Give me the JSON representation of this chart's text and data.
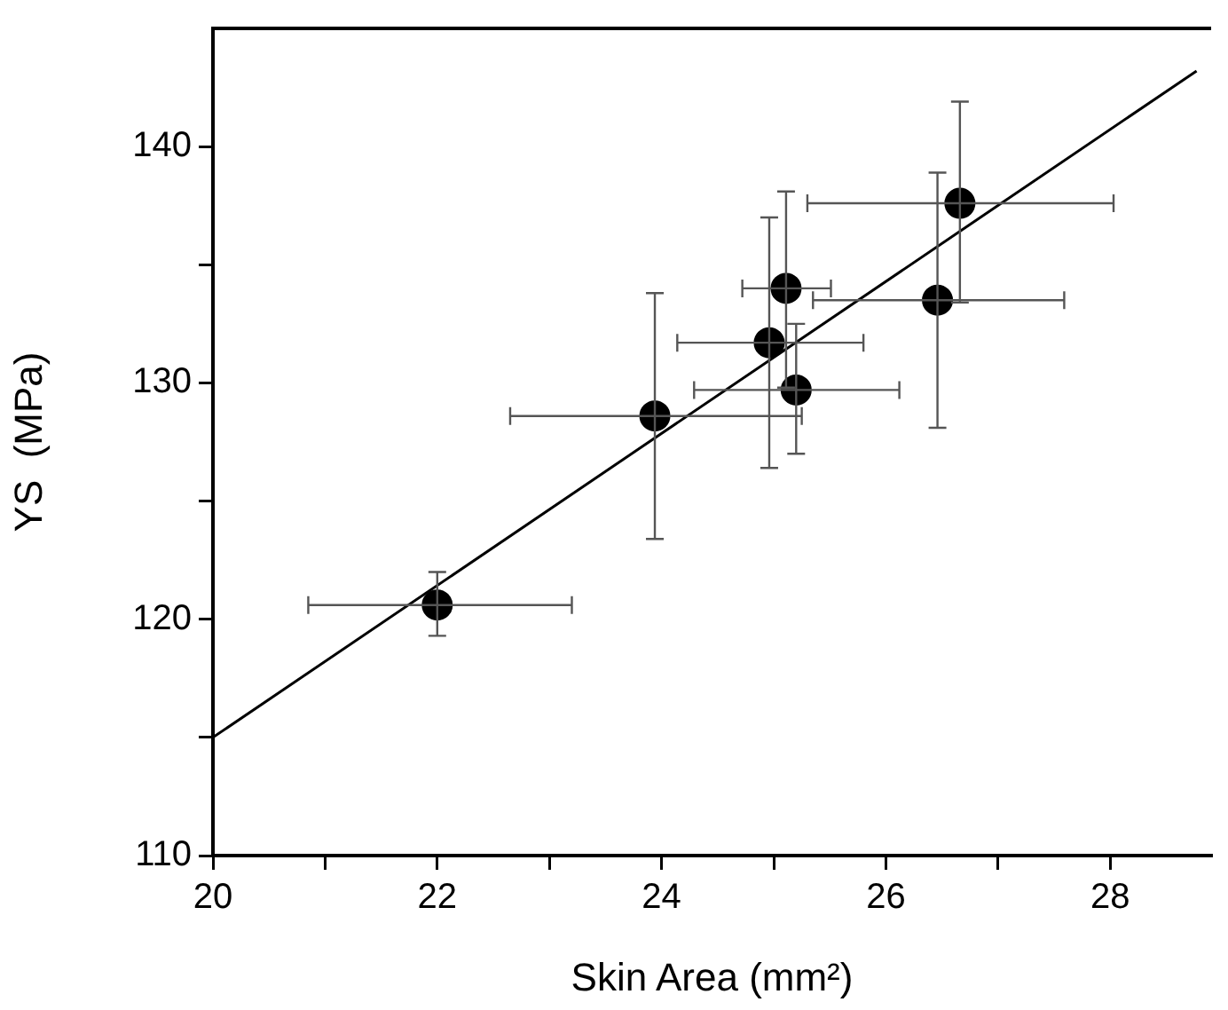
{
  "chart_data": {
    "type": "scatter",
    "xlabel": "Skin Area (mm²)",
    "ylabel": "YS  (MPa)",
    "xlim": [
      20,
      28.9
    ],
    "ylim": [
      110,
      145
    ],
    "xticks": [
      20,
      {
        "value": 21,
        "label": null
      },
      22,
      {
        "value": 23,
        "label": null
      },
      24,
      {
        "value": 25,
        "label": null
      },
      26,
      {
        "value": 27,
        "label": null
      },
      28
    ],
    "yticks": [
      110,
      {
        "value": 115,
        "label": null
      },
      120,
      {
        "value": 125,
        "label": null
      },
      130,
      {
        "value": 135,
        "label": null
      },
      140
    ],
    "grid": false,
    "legend": false,
    "marker": "circle",
    "series": [
      {
        "color": "#000000",
        "x": [
          22.0,
          23.94,
          24.96,
          25.11,
          25.2,
          26.46,
          26.66
        ],
        "values": [
          120.6,
          128.6,
          131.7,
          134.0,
          129.7,
          133.5,
          137.6
        ],
        "errors": [
          [
            119.3,
            122.0
          ],
          [
            123.4,
            133.8
          ],
          [
            126.4,
            137.0
          ],
          [
            129.8,
            138.1
          ],
          [
            127.0,
            132.5
          ],
          [
            128.1,
            138.9
          ],
          [
            133.4,
            141.9
          ]
        ],
        "xerrors": [
          [
            20.85,
            23.2
          ],
          [
            22.65,
            25.25
          ],
          [
            24.14,
            25.8
          ],
          [
            24.72,
            25.51
          ],
          [
            24.29,
            26.12
          ],
          [
            25.35,
            27.59
          ],
          [
            25.3,
            28.03
          ]
        ]
      },
      {
        "type": "line",
        "color": "#000000",
        "x": [
          20,
          28.77
        ],
        "values": [
          115.0,
          143.2
        ],
        "marker": "none",
        "line_style": "solid"
      }
    ]
  }
}
